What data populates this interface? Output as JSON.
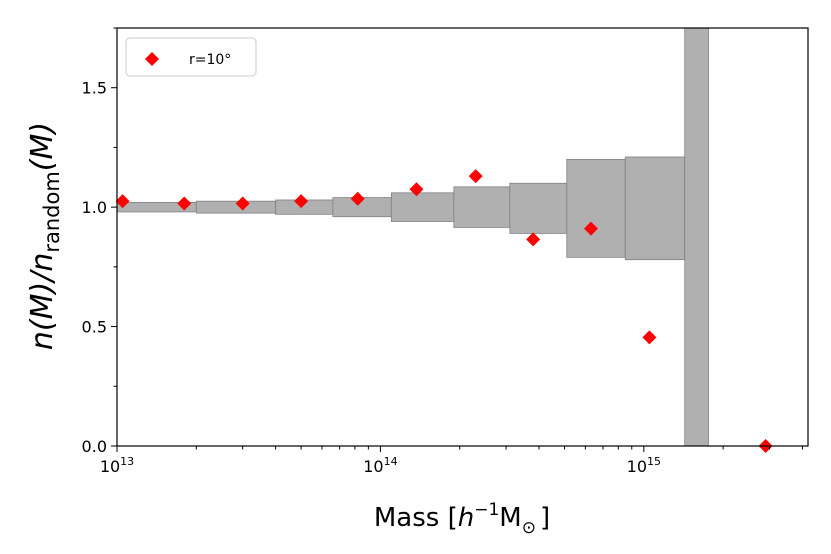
{
  "chart_data": {
    "type": "scatter",
    "x_scale": "log",
    "xlim": [
      10000000000000.0,
      4200000000000000.0
    ],
    "ylim": [
      0.0,
      1.75
    ],
    "xlabel": {
      "pre": "Mass [",
      "h": "h",
      "sup": "−1",
      "M": "M",
      "sub": "⊙",
      "post": "]"
    },
    "ylabel": {
      "a": "n(M)/n",
      "sub": "random",
      "b": "(M)"
    },
    "x_ticks": [
      {
        "value": 10000000000000.0,
        "base": "10",
        "exp": "13"
      },
      {
        "value": 100000000000000.0,
        "base": "10",
        "exp": "14"
      },
      {
        "value": 1000000000000000.0,
        "base": "10",
        "exp": "15"
      }
    ],
    "y_ticks": [
      {
        "value": 0.0,
        "label": "0.0"
      },
      {
        "value": 0.5,
        "label": "0.5"
      },
      {
        "value": 1.0,
        "label": "1.0"
      },
      {
        "value": 1.5,
        "label": "1.5"
      }
    ],
    "legend": {
      "position": "top-left",
      "entries": [
        {
          "label": "r=10°",
          "marker": "diamond",
          "color": "#ff0000"
        }
      ]
    },
    "series": [
      {
        "name": "r=10°",
        "color": "#ff0000",
        "marker": "diamond",
        "x": [
          10500000000000.0,
          18000000000000.0,
          30000000000000.0,
          50000000000000.0,
          82000000000000.0,
          137000000000000.0,
          230000000000000.0,
          380000000000000.0,
          630000000000000.0,
          1050000000000000.0,
          2900000000000000.0
        ],
        "y": [
          1.025,
          1.015,
          1.015,
          1.025,
          1.035,
          1.075,
          1.13,
          0.865,
          0.91,
          0.455,
          0.0
        ]
      }
    ],
    "error_band": {
      "color": "#b0b0b0",
      "edge_color": "#808080",
      "bins": [
        {
          "x_lo": 10000000000000.0,
          "x_hi": 20000000000000.0,
          "y_lo": 0.98,
          "y_hi": 1.02
        },
        {
          "x_lo": 20000000000000.0,
          "x_hi": 40000000000000.0,
          "y_lo": 0.975,
          "y_hi": 1.025
        },
        {
          "x_lo": 40000000000000.0,
          "x_hi": 66000000000000.0,
          "y_lo": 0.97,
          "y_hi": 1.03
        },
        {
          "x_lo": 66000000000000.0,
          "x_hi": 110000000000000.0,
          "y_lo": 0.96,
          "y_hi": 1.04
        },
        {
          "x_lo": 110000000000000.0,
          "x_hi": 190000000000000.0,
          "y_lo": 0.94,
          "y_hi": 1.06
        },
        {
          "x_lo": 190000000000000.0,
          "x_hi": 310000000000000.0,
          "y_lo": 0.915,
          "y_hi": 1.085
        },
        {
          "x_lo": 310000000000000.0,
          "x_hi": 510000000000000.0,
          "y_lo": 0.89,
          "y_hi": 1.1
        },
        {
          "x_lo": 510000000000000.0,
          "x_hi": 850000000000000.0,
          "y_lo": 0.79,
          "y_hi": 1.2
        },
        {
          "x_lo": 850000000000000.0,
          "x_hi": 1430000000000000.0,
          "y_lo": 0.78,
          "y_hi": 1.21
        },
        {
          "x_lo": 1430000000000000.0,
          "x_hi": 1760000000000000.0,
          "y_lo": 0.0,
          "y_hi": 1.75
        }
      ]
    },
    "grid": false
  }
}
